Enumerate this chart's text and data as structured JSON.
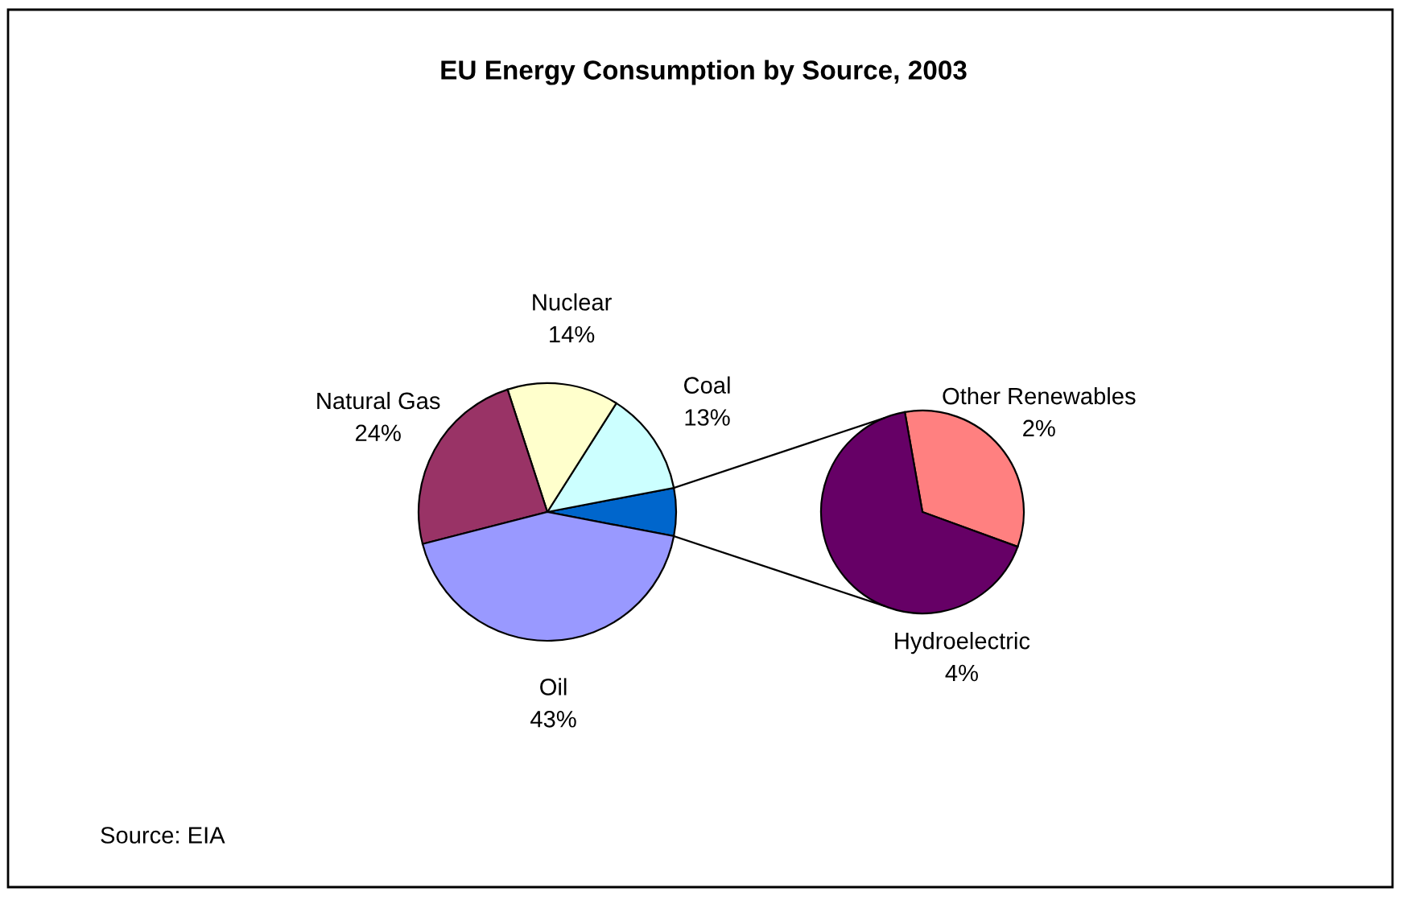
{
  "chart_data": [
    {
      "type": "pie",
      "title": "EU Energy Consumption by Source, 2003",
      "categories": [
        null,
        "Coal",
        "Nuclear",
        "Natural Gas",
        "Oil"
      ],
      "values": [
        6,
        13,
        14,
        24,
        43
      ],
      "colors": [
        "#0066cc",
        "#ccffff",
        "#ffffcc",
        "#993366",
        "#9999ff"
      ],
      "value_labels": [
        null,
        "13%",
        "14%",
        "24%",
        "43%"
      ],
      "annotations": [
        "Source: EIA"
      ]
    },
    {
      "type": "pie",
      "categories": [
        "Other Renewables",
        "Hydroelectric"
      ],
      "values": [
        2,
        4
      ],
      "colors": [
        "#ff8080",
        "#660066"
      ],
      "value_labels": [
        "2%",
        "4%"
      ]
    }
  ]
}
